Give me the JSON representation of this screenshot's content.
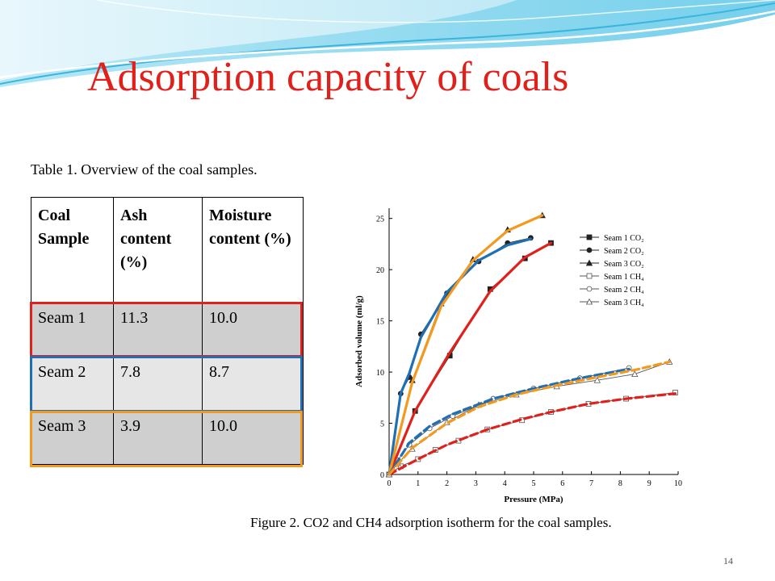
{
  "slide": {
    "title": "Adsorption capacity of coals",
    "page_number": "14"
  },
  "table": {
    "caption": "Table 1. Overview of the coal samples.",
    "headers": [
      "Coal Sample",
      "Ash content (%)",
      "Moisture content (%)"
    ],
    "rows": [
      [
        "Seam 1",
        "11.3",
        "10.0"
      ],
      [
        "Seam 2",
        "7.8",
        "8.7"
      ],
      [
        "Seam 3",
        "3.9",
        "10.0"
      ]
    ],
    "highlight_colors": [
      "#e0201b",
      "#1f6fb5",
      "#f39a1e"
    ]
  },
  "figure": {
    "caption": "Figure 2. CO2 and CH4 adsorption isotherm for the coal samples."
  },
  "chart_data": {
    "type": "line",
    "xlabel": "Pressure (MPa)",
    "ylabel": "Adsorbed volume (ml/g)",
    "xlim": [
      0,
      10
    ],
    "ylim": [
      0,
      26
    ],
    "xticks": [
      0,
      1,
      2,
      3,
      4,
      5,
      6,
      7,
      8,
      9,
      10
    ],
    "yticks": [
      0,
      5,
      10,
      15,
      20,
      25
    ],
    "legend_position": "top-right",
    "series": [
      {
        "name": "Seam 1 CO₂",
        "marker": "square-filled",
        "color": "#222222",
        "x": [
          0,
          0.9,
          2.1,
          3.5,
          4.7,
          5.6
        ],
        "y": [
          0,
          6.2,
          11.6,
          18.1,
          21.1,
          22.6
        ]
      },
      {
        "name": "Seam 2 CO₂",
        "marker": "circle-filled",
        "color": "#222222",
        "x": [
          0,
          0.4,
          0.7,
          1.1,
          2.0,
          3.1,
          4.1,
          4.9
        ],
        "y": [
          0,
          7.9,
          9.5,
          13.7,
          17.7,
          20.8,
          22.6,
          23.1
        ]
      },
      {
        "name": "Seam 3 CO₂",
        "marker": "triangle-filled",
        "color": "#222222",
        "x": [
          0,
          0.8,
          1.8,
          2.9,
          4.1,
          5.3
        ],
        "y": [
          0,
          9.2,
          16.7,
          21.0,
          23.9,
          25.3
        ]
      },
      {
        "name": "Seam 1 CH₄",
        "marker": "square-open",
        "color": "#555555",
        "x": [
          0,
          0.4,
          1.0,
          1.6,
          2.4,
          3.4,
          4.6,
          5.6,
          6.9,
          8.2,
          9.9
        ],
        "y": [
          0,
          0.8,
          1.5,
          2.4,
          3.3,
          4.4,
          5.3,
          6.1,
          6.9,
          7.4,
          8.0
        ]
      },
      {
        "name": "Seam 2 CH₄",
        "marker": "circle-open",
        "color": "#555555",
        "x": [
          0,
          0.3,
          0.7,
          1.4,
          2.2,
          3.6,
          5.0,
          6.6,
          8.3
        ],
        "y": [
          0,
          1.4,
          2.9,
          4.5,
          5.7,
          7.4,
          8.4,
          9.4,
          10.4
        ]
      },
      {
        "name": "Seam 3 CH₄",
        "marker": "triangle-open",
        "color": "#555555",
        "x": [
          0,
          0.3,
          0.8,
          2.0,
          3.1,
          4.4,
          5.8,
          7.2,
          8.5,
          9.7
        ],
        "y": [
          0,
          1.1,
          2.5,
          5.1,
          6.8,
          7.8,
          8.6,
          9.2,
          9.8,
          11.0
        ]
      }
    ],
    "overlay_fits": [
      {
        "color": "#e0201b",
        "dash": false,
        "x": [
          0,
          0.9,
          2.1,
          3.5,
          4.7,
          5.6
        ],
        "y": [
          0,
          6.2,
          11.9,
          17.9,
          21.2,
          22.6
        ]
      },
      {
        "color": "#1f6fb5",
        "dash": false,
        "x": [
          0,
          0.4,
          0.7,
          1.1,
          2.0,
          3.1,
          4.1,
          4.9
        ],
        "y": [
          0,
          7.9,
          9.9,
          13.4,
          17.8,
          20.9,
          22.4,
          23.0
        ]
      },
      {
        "color": "#f39a1e",
        "dash": false,
        "x": [
          0,
          0.8,
          1.8,
          2.9,
          4.1,
          5.3
        ],
        "y": [
          0,
          9.0,
          16.4,
          20.9,
          23.8,
          25.3
        ]
      },
      {
        "color": "#e0201b",
        "dash": true,
        "x": [
          0,
          1.0,
          2.0,
          3.4,
          4.6,
          5.6,
          6.9,
          8.2,
          9.9
        ],
        "y": [
          0,
          1.5,
          2.9,
          4.4,
          5.4,
          6.1,
          6.9,
          7.4,
          7.9
        ]
      },
      {
        "color": "#1f6fb5",
        "dash": true,
        "x": [
          0,
          0.7,
          1.4,
          2.2,
          3.6,
          5.0,
          6.6,
          8.3
        ],
        "y": [
          0,
          3.1,
          4.7,
          5.9,
          7.4,
          8.4,
          9.4,
          10.3
        ]
      },
      {
        "color": "#f39a1e",
        "dash": true,
        "x": [
          0,
          0.8,
          2.0,
          3.1,
          4.4,
          5.8,
          7.2,
          8.5,
          9.7
        ],
        "y": [
          0,
          2.6,
          5.0,
          6.6,
          7.8,
          8.7,
          9.5,
          10.2,
          11.0
        ]
      }
    ]
  }
}
